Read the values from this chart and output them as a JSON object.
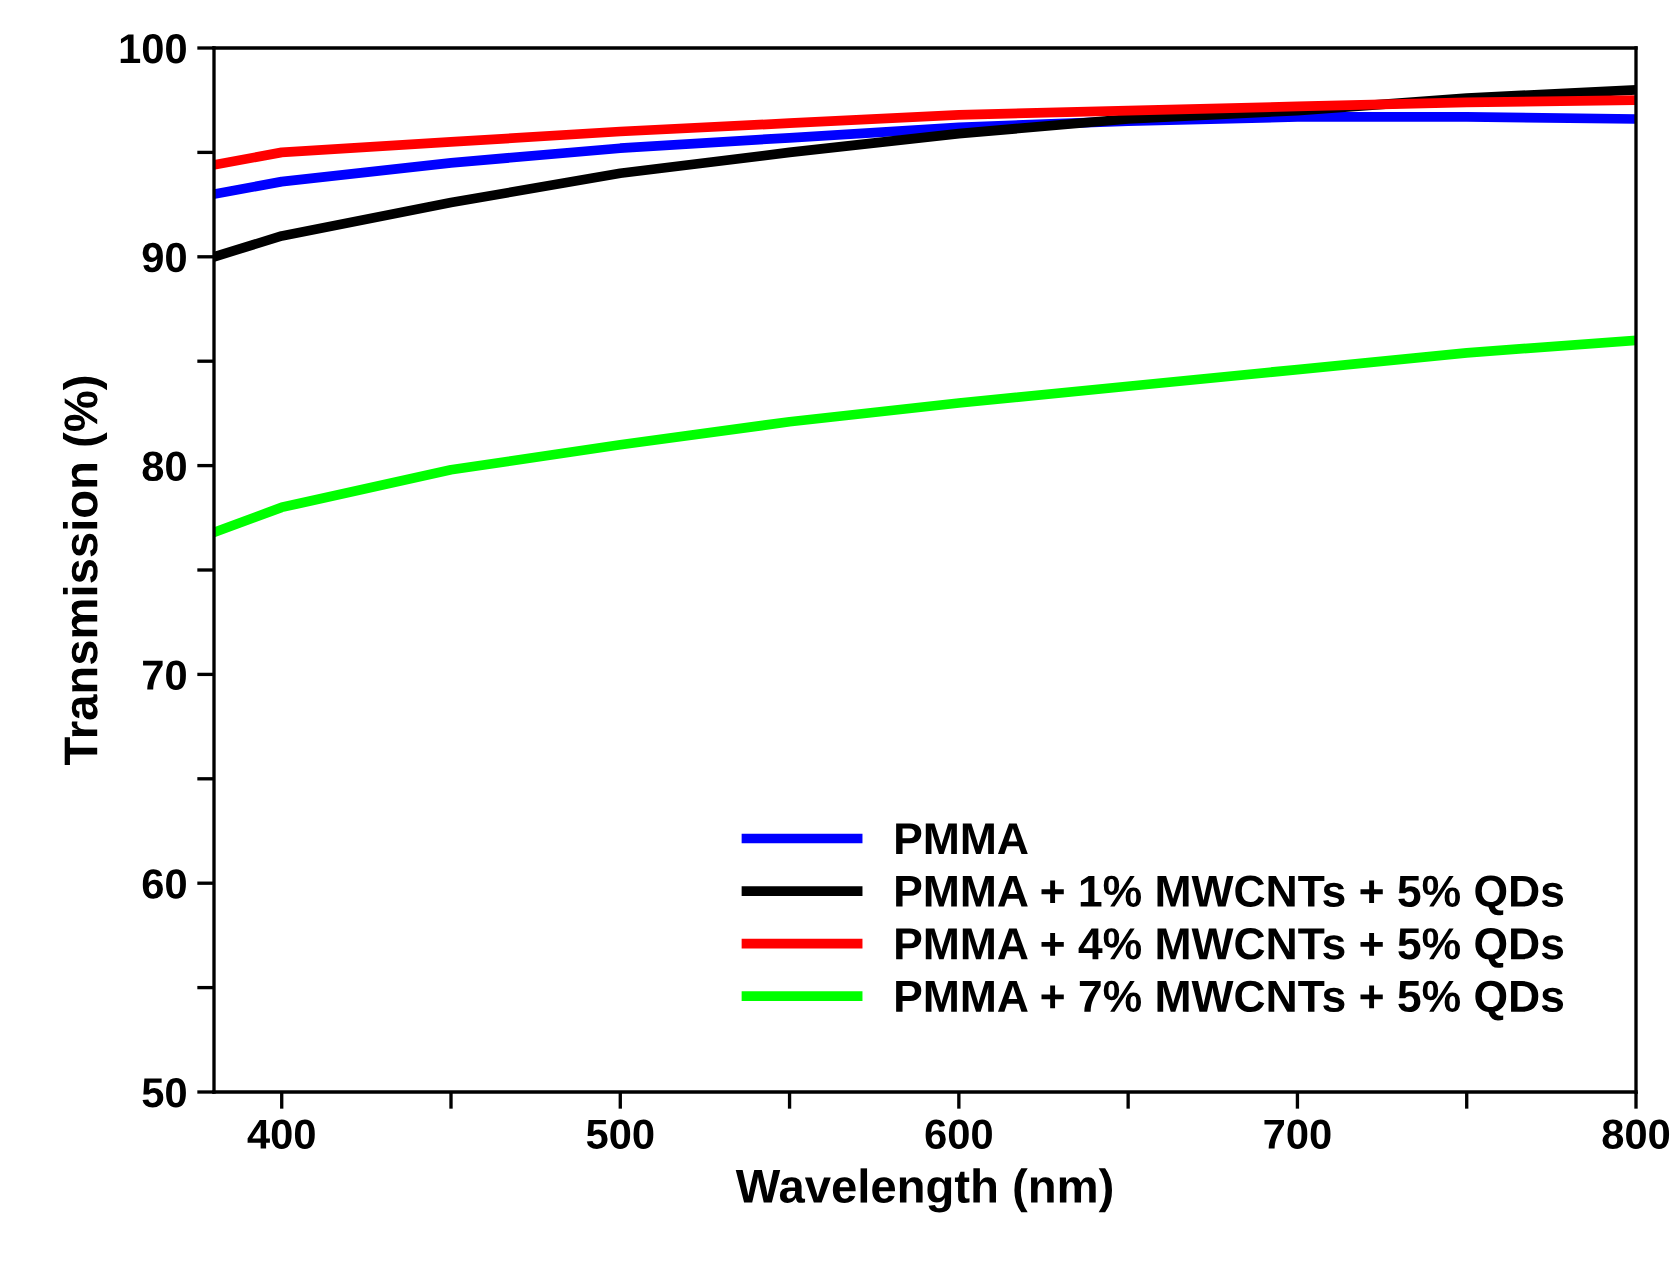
{
  "chart_data": {
    "type": "line",
    "xlabel": "Wavelength (nm)",
    "ylabel": "Transmission (%)",
    "xlim": [
      380,
      800
    ],
    "ylim": [
      50,
      100
    ],
    "xticks": [
      400,
      {
        "value": 450,
        "label": null
      },
      500,
      {
        "value": 550,
        "label": null
      },
      600,
      {
        "value": 650,
        "label": null
      },
      700,
      {
        "value": 750,
        "label": null
      },
      800
    ],
    "yticks": [
      50,
      {
        "value": 55,
        "label": null
      },
      60,
      {
        "value": 65,
        "label": null
      },
      70,
      {
        "value": 75,
        "label": null
      },
      80,
      {
        "value": 85,
        "label": null
      },
      90,
      {
        "value": 95,
        "label": null
      },
      100
    ],
    "x": [
      380,
      400,
      450,
      500,
      550,
      600,
      650,
      700,
      750,
      800
    ],
    "legend": "bottom right",
    "grid": false,
    "line_style": "solid",
    "marker": "none",
    "series": [
      {
        "name": "PMMA",
        "color": "#0000ff",
        "values": [
          93.0,
          93.6,
          94.5,
          95.2,
          95.7,
          96.2,
          96.5,
          96.7,
          96.7,
          96.6
        ]
      },
      {
        "name": "PMMA + 1% MWCNTs + 5% QDs",
        "color": "#000000",
        "values": [
          90.0,
          91.0,
          92.6,
          94.0,
          95.0,
          95.9,
          96.6,
          97.0,
          97.6,
          98.0
        ]
      },
      {
        "name": "PMMA + 4% MWCNTs + 5% QDs",
        "color": "#ff0000",
        "values": [
          94.4,
          95.0,
          95.5,
          96.0,
          96.4,
          96.8,
          97.0,
          97.2,
          97.4,
          97.5
        ]
      },
      {
        "name": "PMMA + 7% MWCNTs + 5% QDs",
        "color": "#00ff00",
        "values": [
          76.8,
          78.0,
          79.8,
          81.0,
          82.1,
          83.0,
          83.8,
          84.6,
          85.4,
          86.0
        ]
      }
    ]
  }
}
